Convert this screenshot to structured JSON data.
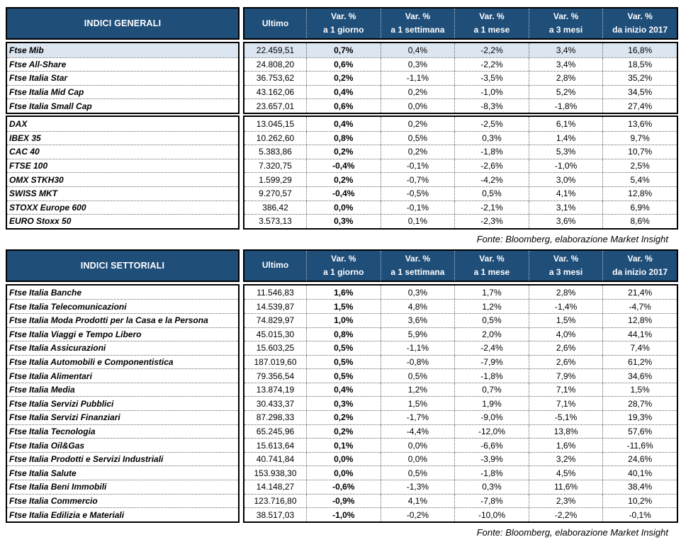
{
  "colors": {
    "header_bg": "#1F4E79",
    "highlight_row_bg": "#DCE6F1"
  },
  "columns": [
    {
      "label": "Ultimo",
      "sub": ""
    },
    {
      "label": "Var. %",
      "sub": "a 1 giorno"
    },
    {
      "label": "Var. %",
      "sub": "a 1 settimana"
    },
    {
      "label": "Var. %",
      "sub": "a 1 mese"
    },
    {
      "label": "Var. %",
      "sub": "a 3 mesi"
    },
    {
      "label": "Var. %",
      "sub": "da inizio 2017"
    }
  ],
  "tables": [
    {
      "title": "INDICI GENERALI",
      "source": "Fonte: Bloomberg, elaborazione Market Insight",
      "groups": [
        {
          "rows": [
            {
              "label": "Ftse Mib",
              "highlight": true,
              "values": [
                "22.459,51",
                "0,7%",
                "0,4%",
                "-2,2%",
                "3,4%",
                "16,8%"
              ]
            },
            {
              "label": "Ftse All-Share",
              "highlight": false,
              "values": [
                "24.808,20",
                "0,6%",
                "0,3%",
                "-2,2%",
                "3,4%",
                "18,5%"
              ]
            },
            {
              "label": "Ftse Italia Star",
              "highlight": false,
              "values": [
                "36.753,62",
                "0,2%",
                "-1,1%",
                "-3,5%",
                "2,8%",
                "35,2%"
              ]
            },
            {
              "label": "Ftse Italia Mid Cap",
              "highlight": false,
              "values": [
                "43.162,06",
                "0,4%",
                "0,2%",
                "-1,0%",
                "5,2%",
                "34,5%"
              ]
            },
            {
              "label": "Ftse Italia Small Cap",
              "highlight": false,
              "values": [
                "23.657,01",
                "0,6%",
                "0,0%",
                "-8,3%",
                "-1,8%",
                "27,4%"
              ]
            }
          ]
        },
        {
          "rows": [
            {
              "label": "DAX",
              "highlight": false,
              "values": [
                "13.045,15",
                "0,4%",
                "0,2%",
                "-2,5%",
                "6,1%",
                "13,6%"
              ]
            },
            {
              "label": "IBEX 35",
              "highlight": false,
              "values": [
                "10.262,60",
                "0,8%",
                "0,5%",
                "0,3%",
                "1,4%",
                "9,7%"
              ]
            },
            {
              "label": "CAC 40",
              "highlight": false,
              "values": [
                "5.383,86",
                "0,2%",
                "0,2%",
                "-1,8%",
                "5,3%",
                "10,7%"
              ]
            },
            {
              "label": "FTSE 100",
              "highlight": false,
              "values": [
                "7.320,75",
                "-0,4%",
                "-0,1%",
                "-2,6%",
                "-1,0%",
                "2,5%"
              ]
            },
            {
              "label": "OMX STKH30",
              "highlight": false,
              "values": [
                "1.599,29",
                "0,2%",
                "-0,7%",
                "-4,2%",
                "3,0%",
                "5,4%"
              ]
            },
            {
              "label": "SWISS MKT",
              "highlight": false,
              "values": [
                "9.270,57",
                "-0,4%",
                "-0,5%",
                "0,5%",
                "4,1%",
                "12,8%"
              ]
            },
            {
              "label": "STOXX Europe 600",
              "highlight": false,
              "values": [
                "386,42",
                "0,0%",
                "-0,1%",
                "-2,1%",
                "3,1%",
                "6,9%"
              ]
            },
            {
              "label": "EURO Stoxx 50",
              "highlight": false,
              "values": [
                "3.573,13",
                "0,3%",
                "0,1%",
                "-2,3%",
                "3,6%",
                "8,6%"
              ]
            }
          ]
        }
      ]
    },
    {
      "title": "INDICI SETTORIALI",
      "source": "Fonte: Bloomberg, elaborazione Market Insight",
      "groups": [
        {
          "rows": [
            {
              "label": "Ftse Italia Banche",
              "highlight": false,
              "values": [
                "11.546,83",
                "1,6%",
                "0,3%",
                "1,7%",
                "2,8%",
                "21,4%"
              ]
            },
            {
              "label": "Ftse Italia Telecomunicazioni",
              "highlight": false,
              "values": [
                "14.539,87",
                "1,5%",
                "4,8%",
                "1,2%",
                "-1,4%",
                "-4,7%"
              ]
            },
            {
              "label": "Ftse Italia Moda Prodotti per la Casa e la Persona",
              "highlight": false,
              "values": [
                "74.829,97",
                "1,0%",
                "3,6%",
                "0,5%",
                "1,5%",
                "12,8%"
              ]
            },
            {
              "label": "Ftse Italia Viaggi e Tempo Libero",
              "highlight": false,
              "values": [
                "45.015,30",
                "0,8%",
                "5,9%",
                "2,0%",
                "4,0%",
                "44,1%"
              ]
            },
            {
              "label": "Ftse Italia Assicurazioni",
              "highlight": false,
              "values": [
                "15.603,25",
                "0,5%",
                "-1,1%",
                "-2,4%",
                "2,6%",
                "7,4%"
              ]
            },
            {
              "label": "Ftse Italia Automobili e Componentistica",
              "highlight": false,
              "values": [
                "187.019,60",
                "0,5%",
                "-0,8%",
                "-7,9%",
                "2,6%",
                "61,2%"
              ]
            },
            {
              "label": "Ftse Italia Alimentari",
              "highlight": false,
              "values": [
                "79.356,54",
                "0,5%",
                "0,5%",
                "-1,8%",
                "7,9%",
                "34,6%"
              ]
            },
            {
              "label": "Ftse Italia Media",
              "highlight": false,
              "values": [
                "13.874,19",
                "0,4%",
                "1,2%",
                "0,7%",
                "7,1%",
                "1,5%"
              ]
            },
            {
              "label": "Ftse Italia Servizi Pubblici",
              "highlight": false,
              "values": [
                "30.433,37",
                "0,3%",
                "1,5%",
                "1,9%",
                "7,1%",
                "28,7%"
              ]
            },
            {
              "label": "Ftse Italia Servizi Finanziari",
              "highlight": false,
              "values": [
                "87.298,33",
                "0,2%",
                "-1,7%",
                "-9,0%",
                "-5,1%",
                "19,3%"
              ]
            },
            {
              "label": "Ftse Italia Tecnologia",
              "highlight": false,
              "values": [
                "65.245,96",
                "0,2%",
                "-4,4%",
                "-12,0%",
                "13,8%",
                "57,6%"
              ]
            },
            {
              "label": "Ftse Italia Oil&Gas",
              "highlight": false,
              "values": [
                "15.613,64",
                "0,1%",
                "0,0%",
                "-6,6%",
                "1,6%",
                "-11,6%"
              ]
            },
            {
              "label": "Ftse Italia Prodotti e Servizi Industriali",
              "highlight": false,
              "values": [
                "40.741,84",
                "0,0%",
                "0,0%",
                "-3,9%",
                "3,2%",
                "24,6%"
              ]
            },
            {
              "label": "Ftse Italia Salute",
              "highlight": false,
              "values": [
                "153.938,30",
                "0,0%",
                "0,5%",
                "-1,8%",
                "4,5%",
                "40,1%"
              ]
            },
            {
              "label": "Ftse Italia Beni Immobili",
              "highlight": false,
              "values": [
                "14.148,27",
                "-0,6%",
                "-1,3%",
                "0,3%",
                "11,6%",
                "38,4%"
              ]
            },
            {
              "label": "Ftse Italia Commercio",
              "highlight": false,
              "values": [
                "123.716,80",
                "-0,9%",
                "4,1%",
                "-7,8%",
                "2,3%",
                "10,2%"
              ]
            },
            {
              "label": "Ftse Italia Edilizia e Materiali",
              "highlight": false,
              "values": [
                "38.517,03",
                "-1,0%",
                "-0,2%",
                "-10,0%",
                "-2,2%",
                "-0,1%"
              ]
            }
          ]
        }
      ]
    }
  ]
}
